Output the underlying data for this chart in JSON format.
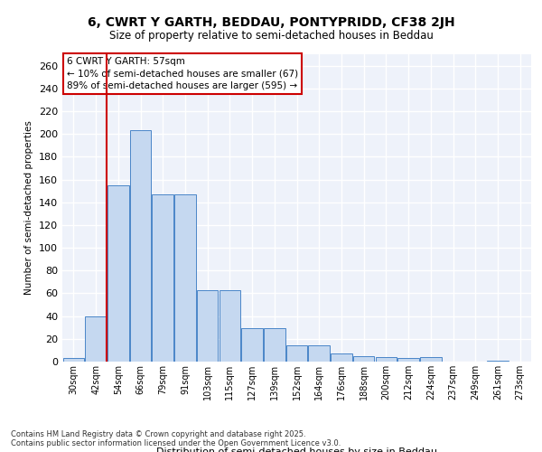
{
  "title1": "6, CWRT Y GARTH, BEDDAU, PONTYPRIDD, CF38 2JH",
  "title2": "Size of property relative to semi-detached houses in Beddau",
  "xlabel": "Distribution of semi-detached houses by size in Beddau",
  "ylabel": "Number of semi-detached properties",
  "categories": [
    "30sqm",
    "42sqm",
    "54sqm",
    "66sqm",
    "79sqm",
    "91sqm",
    "103sqm",
    "115sqm",
    "127sqm",
    "139sqm",
    "152sqm",
    "164sqm",
    "176sqm",
    "188sqm",
    "200sqm",
    "212sqm",
    "224sqm",
    "237sqm",
    "249sqm",
    "261sqm",
    "273sqm"
  ],
  "values": [
    3,
    40,
    155,
    203,
    147,
    147,
    63,
    63,
    29,
    29,
    14,
    14,
    7,
    5,
    4,
    3,
    4,
    0,
    0,
    1,
    0
  ],
  "bar_color": "#c5d8f0",
  "bar_edge_color": "#4a86c8",
  "vline_x": 1.5,
  "vline_color": "#cc0000",
  "annotation_title": "6 CWRT Y GARTH: 57sqm",
  "annotation_line1": "← 10% of semi-detached houses are smaller (67)",
  "annotation_line2": "89% of semi-detached houses are larger (595) →",
  "annotation_box_color": "#cc0000",
  "ylim": [
    0,
    270
  ],
  "yticks": [
    0,
    20,
    40,
    60,
    80,
    100,
    120,
    140,
    160,
    180,
    200,
    220,
    240,
    260
  ],
  "background_color": "#eef2fa",
  "grid_color": "#ffffff",
  "footer_line1": "Contains HM Land Registry data © Crown copyright and database right 2025.",
  "footer_line2": "Contains public sector information licensed under the Open Government Licence v3.0."
}
